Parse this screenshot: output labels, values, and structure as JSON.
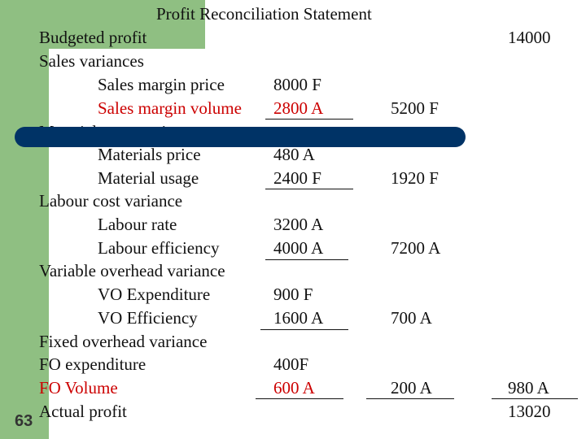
{
  "title": "Profit Reconciliation Statement",
  "page_number": "63",
  "budgeted_profit": {
    "label": "Budgeted profit",
    "amount": "14000"
  },
  "sales": {
    "heading": "Sales variances",
    "items": [
      {
        "label": "Sales margin price",
        "value": "8000 F"
      },
      {
        "label": "Sales margin volume",
        "value": "2800 A"
      }
    ],
    "subtotal": "5200 F"
  },
  "materials": {
    "heading": "Materials cost variance",
    "items": [
      {
        "label": "Materials price",
        "value": "480 A"
      },
      {
        "label": "Material usage",
        "value": "2400 F"
      }
    ],
    "subtotal": "1920 F"
  },
  "labour": {
    "heading": "Labour cost variance",
    "items": [
      {
        "label": "Labour rate",
        "value": "3200 A"
      },
      {
        "label": "Labour efficiency",
        "value": "4000 A"
      }
    ],
    "subtotal": "7200 A"
  },
  "variable_overhead": {
    "heading": "Variable overhead variance",
    "items": [
      {
        "label": "VO Expenditure",
        "value": "900 F"
      },
      {
        "label": "VO Efficiency",
        "value": "1600 A"
      }
    ],
    "subtotal": "700 A"
  },
  "fixed_overhead": {
    "heading": "Fixed overhead variance",
    "items": [
      {
        "label": "FO expenditure",
        "value": "400F"
      },
      {
        "label": "FO Volume",
        "value": "600 A"
      }
    ],
    "subtotal": "200 A"
  },
  "total_variance": "980 A",
  "actual_profit": {
    "label": "Actual profit",
    "amount": "13020"
  },
  "colors": {
    "green": "#8fbf82",
    "band": "#003366",
    "highlight": "#cc0000"
  }
}
